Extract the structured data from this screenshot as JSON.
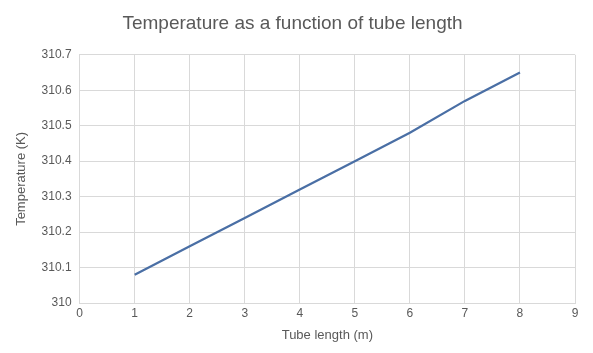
{
  "chart_data": {
    "type": "line",
    "title": "Temperature as a function of tube length",
    "x_label": "Tube length (m)",
    "y_label": "Temperature (K)",
    "x": [
      1,
      2,
      3,
      4,
      5,
      6,
      7,
      8
    ],
    "values": [
      310.08,
      310.16,
      310.24,
      310.32,
      310.4,
      310.48,
      310.57,
      310.65
    ],
    "color": "#4a6fa5",
    "marker": "none",
    "xlim": [
      0,
      9
    ],
    "xticks": [
      0,
      1,
      2,
      3,
      4,
      5,
      6,
      7,
      8,
      9
    ],
    "ylim": [
      310,
      310.7
    ],
    "yticks": [
      310,
      310.1,
      310.2,
      310.3,
      310.4,
      310.5,
      310.6,
      310.7
    ],
    "grid": true
  }
}
